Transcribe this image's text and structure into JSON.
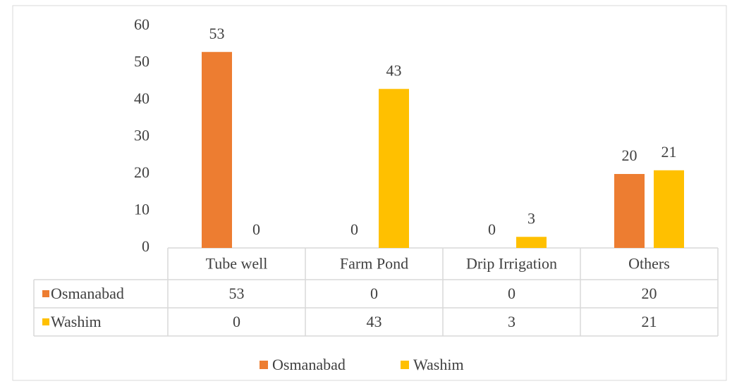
{
  "chart_data": {
    "type": "bar",
    "categories": [
      "Tube well",
      "Farm Pond",
      "Drip Irrigation",
      "Others"
    ],
    "series": [
      {
        "name": "Osmanabad",
        "color": "#ed7d31",
        "values": [
          53,
          0,
          0,
          20
        ]
      },
      {
        "name": "Washim",
        "color": "#ffc000",
        "values": [
          0,
          43,
          3,
          21
        ]
      }
    ],
    "ylim": [
      0,
      60
    ],
    "yticks": [
      0,
      10,
      20,
      30,
      40,
      50,
      60
    ],
    "data_table": true,
    "legend": "bottom"
  }
}
